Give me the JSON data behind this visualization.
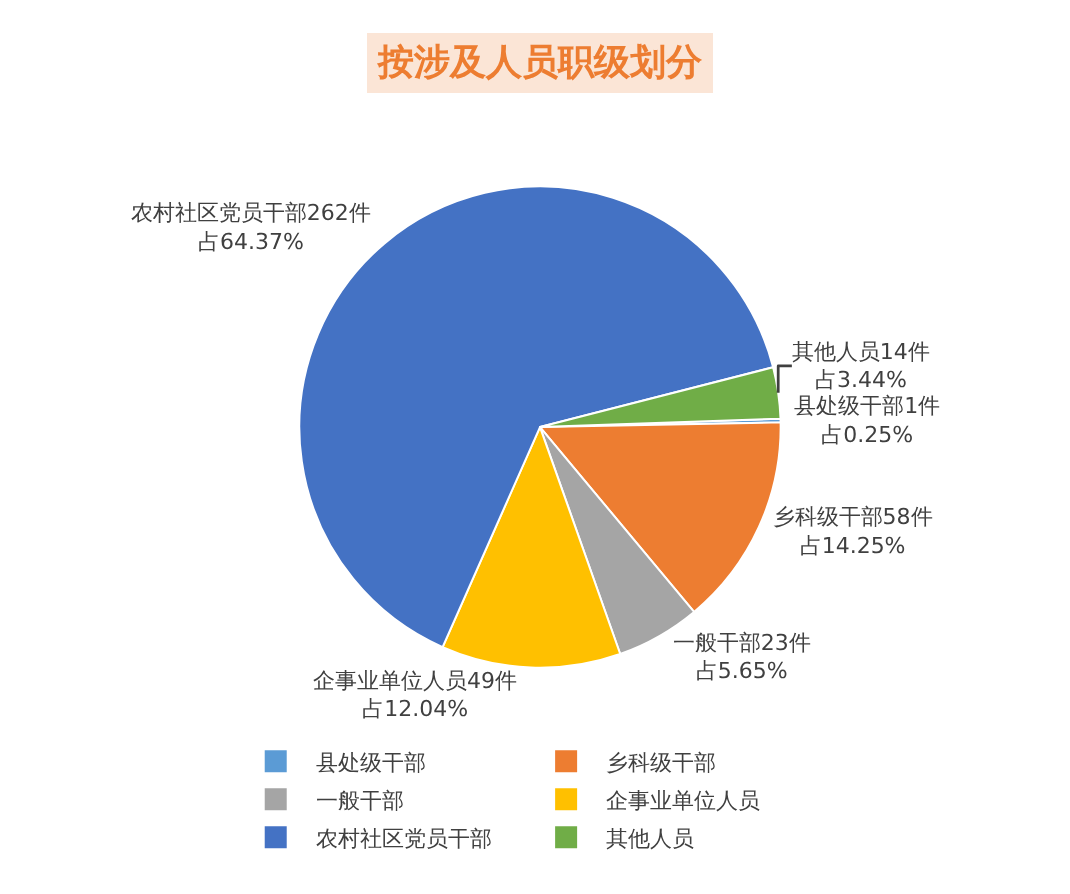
{
  "chart_data": {
    "type": "pie",
    "title": "按涉及人员职级划分",
    "categories": [
      "县处级干部",
      "乡科级干部",
      "一般干部",
      "企事业单位人员",
      "农村社区党员干部",
      "其他人员"
    ],
    "values": [
      1,
      58,
      23,
      49,
      262,
      14
    ],
    "colors": [
      "#5b9bd5",
      "#ed7d31",
      "#a5a5a5",
      "#ffc000",
      "#4472c4",
      "#70ad47"
    ],
    "value_labels": [
      "县处级干部1件占0.25%",
      "乡科级干部58件占14.25%",
      "一般干部23件占5.65%",
      "企事业单位人员49件占12.04%",
      "农村社区党员干部262件占64.37%",
      "其他人员14件占3.44%"
    ],
    "legend": "bottom"
  }
}
